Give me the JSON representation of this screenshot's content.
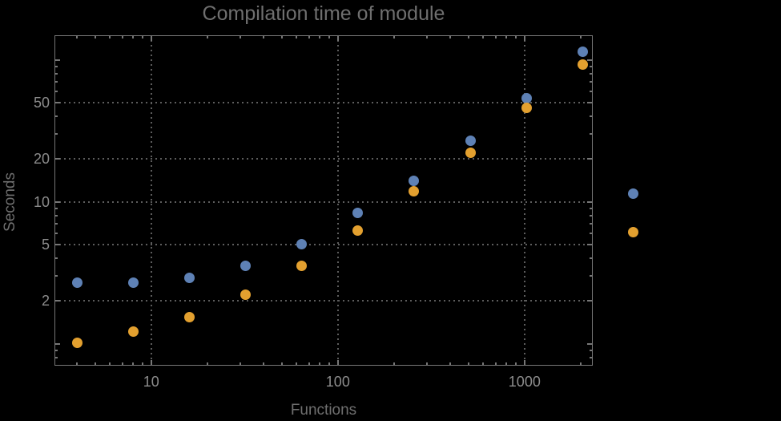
{
  "title": "Compilation time of module",
  "chart_data": {
    "type": "scatter",
    "title": "Compilation time of module",
    "xlabel": "Functions",
    "ylabel": "Seconds",
    "x_scale": "log",
    "y_scale": "log",
    "grid": "dotted",
    "x": [
      4,
      8,
      16,
      32,
      64,
      128,
      256,
      512,
      1024,
      2048
    ],
    "series": [
      {
        "name": "series-1",
        "color": "#5e81b5",
        "values": [
          2.7,
          2.7,
          2.9,
          3.55,
          5.0,
          8.3,
          14.0,
          26.9,
          54,
          114
        ]
      },
      {
        "name": "series-2",
        "color": "#e3a02f",
        "values": [
          1.02,
          1.22,
          1.54,
          2.2,
          3.55,
          6.3,
          11.8,
          22.2,
          46,
          93
        ]
      }
    ],
    "x_tick_labels": [
      "10",
      "100",
      "1000"
    ],
    "x_tick_values": [
      10,
      100,
      1000
    ],
    "x_minor_ticks": [
      4,
      5,
      6,
      7,
      8,
      9,
      20,
      30,
      40,
      50,
      60,
      70,
      80,
      90,
      200,
      300,
      400,
      500,
      600,
      700,
      800,
      900,
      2000
    ],
    "y_tick_labels": [
      "2",
      "5",
      "10",
      "20",
      "50"
    ],
    "y_tick_values": [
      2,
      5,
      10,
      20,
      50
    ],
    "y_major_unlabeled_ticks": [
      1,
      100
    ],
    "y_minor_ticks": [
      0.8,
      0.9,
      3,
      4,
      6,
      7,
      8,
      9,
      30,
      40,
      60,
      70,
      80,
      90
    ],
    "x_range": [
      3.03,
      2320
    ],
    "y_range": [
      0.7,
      149
    ],
    "legend": {
      "position": "right-of-plot",
      "labels_visible": false,
      "markers": [
        {
          "name": "legend-marker-series-1",
          "color": "#5e81b5"
        },
        {
          "name": "legend-marker-series-2",
          "color": "#e3a02f"
        }
      ]
    }
  },
  "colors": {
    "background": "#000000",
    "frame": "#777777",
    "grid": "#5d5d5d",
    "tick_label": "#8c8c8c",
    "title_text": "#6f6f6f",
    "series_1": "#5e81b5",
    "series_2": "#e3a02f"
  }
}
